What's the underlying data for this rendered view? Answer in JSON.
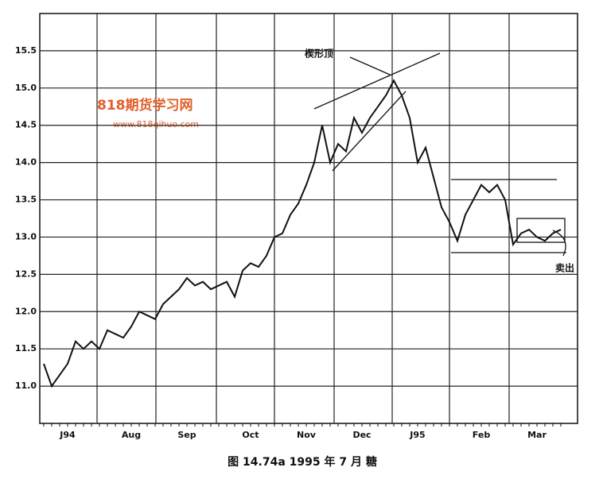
{
  "chart_data": {
    "type": "line",
    "caption": "图 14.74a  1995 年 7 月  糖",
    "annotations": [
      "楔形顶",
      "卖出"
    ],
    "watermark": [
      "818期货学习网",
      "www.818qihuo.com"
    ],
    "color": "#111111",
    "grid": true,
    "categories": [
      null,
      null,
      null,
      "J94",
      null,
      null,
      null,
      null,
      null,
      null,
      null,
      "Aug",
      null,
      null,
      null,
      null,
      null,
      null,
      "Sep",
      null,
      null,
      null,
      null,
      null,
      null,
      null,
      "Oct",
      null,
      null,
      null,
      null,
      null,
      null,
      "Nov",
      null,
      null,
      null,
      null,
      null,
      null,
      "Dec",
      null,
      null,
      null,
      null,
      null,
      null,
      "J95",
      null,
      null,
      null,
      null,
      null,
      null,
      null,
      "Feb",
      null,
      null,
      null,
      null,
      null,
      null,
      "Mar",
      null,
      null,
      null
    ],
    "values": [
      11.3,
      11.0,
      11.15,
      11.3,
      11.6,
      11.5,
      11.6,
      11.5,
      11.75,
      11.7,
      11.65,
      11.8,
      12.0,
      11.95,
      11.9,
      12.1,
      12.2,
      12.3,
      12.45,
      12.35,
      12.4,
      12.3,
      12.35,
      12.4,
      12.2,
      12.55,
      12.65,
      12.6,
      12.75,
      13.0,
      13.05,
      13.3,
      13.45,
      13.7,
      14.0,
      14.5,
      14.0,
      14.25,
      14.15,
      14.6,
      14.4,
      14.6,
      14.75,
      14.9,
      15.1,
      14.9,
      14.6,
      14.0,
      14.2,
      13.8,
      13.4,
      13.2,
      12.95,
      13.3,
      13.5,
      13.7,
      13.6,
      13.7,
      13.5,
      12.9,
      13.05,
      13.1,
      13.0,
      12.95,
      13.05,
      13.1
    ],
    "ylim": [
      10.5,
      16.0
    ],
    "yticks": [
      {
        "value": 11,
        "label": "11.0"
      },
      11.5,
      {
        "value": 12,
        "label": "12.0"
      },
      12.5,
      {
        "value": 13,
        "label": "13.0"
      },
      13.5,
      {
        "value": 14,
        "label": "14.0"
      },
      14.5,
      {
        "value": 15,
        "label": "15.0"
      },
      15.5
    ]
  }
}
